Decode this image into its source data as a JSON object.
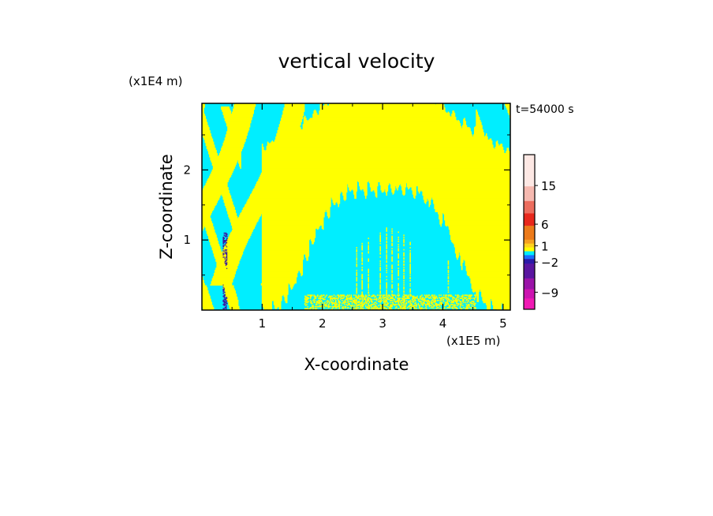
{
  "chart_data": {
    "type": "heatmap",
    "title": "vertical velocity",
    "xlabel": "X-coordinate",
    "ylabel": "Z-coordinate",
    "x_unit": "(x1E5 m)",
    "y_unit": "(x1E4 m)",
    "time_label": "t=54000 s",
    "xlim": [
      0,
      5.12
    ],
    "ylim": [
      0,
      2.95
    ],
    "x_ticks": [
      {
        "value": 1,
        "label": "1"
      },
      {
        "value": 2,
        "label": "2"
      },
      {
        "value": 3,
        "label": "3"
      },
      {
        "value": 4,
        "label": "4"
      },
      {
        "value": 5,
        "label": "5"
      }
    ],
    "y_ticks": [
      {
        "value": 1,
        "label": "1"
      },
      {
        "value": 2,
        "label": "2"
      }
    ],
    "field_colors": {
      "positive_small": "#ffff00",
      "negative_small": "#00eeff",
      "negative_strong": "#3a1aa0"
    },
    "colorbar": {
      "tick_labels": [
        {
          "level": 15,
          "label": "15"
        },
        {
          "level": 6,
          "label": "6"
        },
        {
          "level": 1,
          "label": "1"
        },
        {
          "level": -2,
          "label": "−2"
        },
        {
          "level": -9,
          "label": "−9"
        }
      ],
      "bands": [
        {
          "color": "#fde8e4"
        },
        {
          "color": "#f6b9b0"
        },
        {
          "color": "#ec6d5e"
        },
        {
          "color": "#e8281c"
        },
        {
          "color": "#ec7a1a"
        },
        {
          "color": "#f4a020"
        },
        {
          "color": "#ffd21e"
        },
        {
          "color": "#ffff00"
        },
        {
          "color": "#00eeff"
        },
        {
          "color": "#1a6cff"
        },
        {
          "color": "#2c1aa8"
        },
        {
          "color": "#5a16a0"
        },
        {
          "color": "#9a14a8"
        },
        {
          "color": "#cc14b0"
        },
        {
          "color": "#f01ab4"
        }
      ]
    }
  }
}
